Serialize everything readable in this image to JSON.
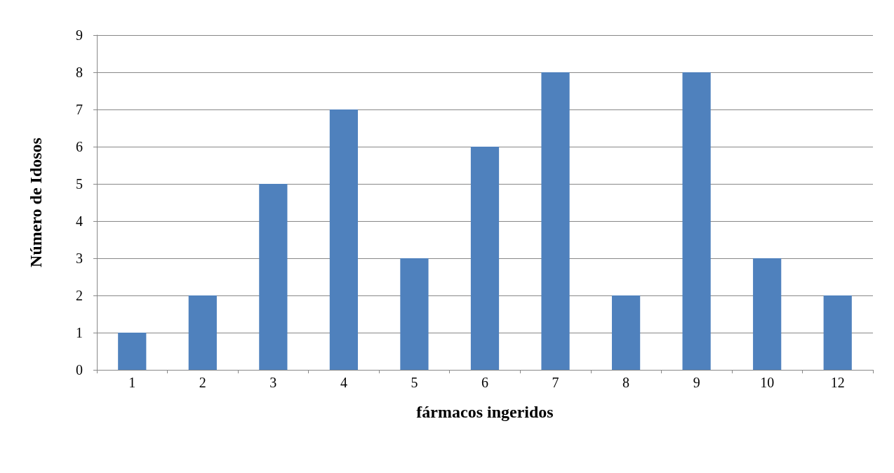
{
  "chart_data": {
    "type": "bar",
    "xlabel": "fármacos ingeridos",
    "ylabel": "Número de Idosos",
    "categories": [
      "1",
      "2",
      "3",
      "4",
      "5",
      "6",
      "7",
      "8",
      "9",
      "10",
      "12"
    ],
    "values": [
      1,
      2,
      5,
      7,
      3,
      6,
      8,
      2,
      8,
      3,
      2
    ],
    "color": "#4f81bd",
    "ylim": [
      0,
      9
    ],
    "yticks": [
      0,
      1,
      2,
      3,
      4,
      5,
      6,
      7,
      8,
      9
    ],
    "grid": "y"
  }
}
